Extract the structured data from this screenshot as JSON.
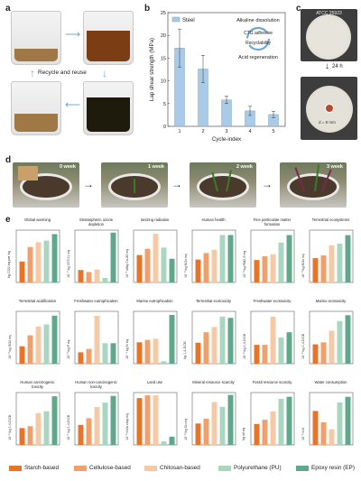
{
  "figure": {
    "panels": {
      "a": "a",
      "b": "b",
      "c": "c",
      "d": "d",
      "e": "e"
    },
    "panel_a": {
      "recycle_label": "Recycle and reuse"
    },
    "panel_c": {
      "top_label": "ATCC 25923",
      "time_label": "24 h",
      "diameter_label": "d = 8 mm"
    },
    "panel_d": {
      "weeks": [
        "0 week",
        "1 week",
        "2 week",
        "3 week"
      ]
    },
    "colors": {
      "starch": "#e8742a",
      "cellulose": "#f0a06a",
      "chitosan": "#f6c9a6",
      "pu": "#a8d6c0",
      "ep": "#5fa88c",
      "steel_bar": "#a9cbe8",
      "arrow_blue": "#6fa8d6"
    }
  },
  "chart_data": [
    {
      "type": "bar",
      "panel": "b",
      "legend": "Steel",
      "categories": [
        "1",
        "2",
        "3",
        "4",
        "5"
      ],
      "values": [
        17.2,
        12.6,
        5.8,
        3.4,
        2.6
      ],
      "errors": [
        4.2,
        3.0,
        0.8,
        1.0,
        0.7
      ],
      "xlabel": "Cycle-index",
      "ylabel": "Lap shear strength (MPa)",
      "ylim": [
        0,
        25
      ],
      "yticks": [
        0,
        5,
        10,
        15,
        20,
        25
      ],
      "annotations": [
        "Alkaline dissolution",
        "CTG adhesive",
        "Recyclability",
        "Acid regeneration"
      ]
    },
    {
      "type": "bar",
      "panel": "e",
      "legend": [
        "Starch-based",
        "Cellulose-based",
        "Chitosan-based",
        "Polyurethane (PU)",
        "Epoxy resin (EP)"
      ],
      "subplots": [
        {
          "title": "Global warming",
          "ylabel": "kg CO2 eq per kg",
          "values": [
            2.6,
            4.4,
            5.0,
            5.2,
            6.0
          ],
          "ymax": 6.5
        },
        {
          "title": "Stratospheric ozone depletion",
          "ylabel": "10⁻⁷ kg CFC11 eq",
          "values": [
            5.0,
            4.2,
            5.2,
            1.8,
            20.0
          ],
          "ymax": 21
        },
        {
          "title": "Ionizing radiation",
          "ylabel": "10⁻¹ kBq Co-60 eq",
          "values": [
            2.2,
            2.7,
            3.9,
            2.8,
            1.9
          ],
          "ymax": 4.2
        },
        {
          "title": "Human health",
          "ylabel": "10⁻³ kg NOx eq",
          "values": [
            7.0,
            9.0,
            10.0,
            14.5,
            14.5
          ],
          "ymax": 16
        },
        {
          "title": "Fine particulate matter formation",
          "ylabel": "10⁻³ kg PM2.5 eq",
          "values": [
            3.6,
            4.2,
            4.5,
            6.4,
            7.6
          ],
          "ymax": 8.4
        },
        {
          "title": "Terrestrial ecosystems",
          "ylabel": "10⁻³ kg NOx eq",
          "values": [
            7.2,
            8.0,
            11.0,
            11.5,
            14.0
          ],
          "ymax": 15.5
        },
        {
          "title": "Terrestrial acidification",
          "ylabel": "10⁻³ kg SO2 eq",
          "values": [
            8.0,
            13.0,
            17.0,
            18.0,
            22.0
          ],
          "ymax": 24
        },
        {
          "title": "Freshwater eutrophication",
          "ylabel": "10⁻³ kg P eq",
          "values": [
            1.0,
            1.3,
            4.2,
            1.8,
            1.8
          ],
          "ymax": 4.6
        },
        {
          "title": "Marine eutrophication",
          "ylabel": "10⁻⁴ kg N eq",
          "values": [
            3.6,
            4.0,
            4.2,
            0.4,
            8.2
          ],
          "ymax": 8.8
        },
        {
          "title": "Terrestrial ecotoxicity",
          "ylabel": "kg 1,4-DCB",
          "values": [
            8.0,
            12.0,
            14.0,
            18.0,
            17.5
          ],
          "ymax": 20
        },
        {
          "title": "Freshwater ecotoxicity",
          "ylabel": "10⁻² kg 1,4-DCB",
          "values": [
            3.6,
            3.6,
            9.0,
            5.0,
            6.0
          ],
          "ymax": 10
        },
        {
          "title": "Marine ecotoxicity",
          "ylabel": "10⁻² kg 1,4-DCB",
          "values": [
            5.0,
            5.5,
            8.5,
            11.0,
            12.5
          ],
          "ymax": 13.5
        },
        {
          "title": "Human carcinogenic toxicity",
          "ylabel": "10⁻² kg 1,4-DCB",
          "values": [
            18.0,
            20.0,
            34.0,
            36.0,
            52.0
          ],
          "ymax": 56
        },
        {
          "title": "Human non-carcinogenic toxicity",
          "ylabel": "10⁻¹ kg 1,4-DCB",
          "values": [
            18.0,
            24.0,
            34.0,
            38.0,
            44.0
          ],
          "ymax": 47
        },
        {
          "title": "Land use",
          "ylabel": "10⁻² m2a crop eq",
          "values": [
            68.0,
            72.0,
            72.0,
            5.0,
            12.0
          ],
          "ymax": 76
        },
        {
          "title": "Mineral resource scarcity",
          "ylabel": "10⁻³ kg Cu eq",
          "values": [
            9.0,
            11.0,
            18.0,
            16.0,
            21.0
          ],
          "ymax": 22
        },
        {
          "title": "Fossil resource scarcity",
          "ylabel": "kg oil eq",
          "values": [
            1.0,
            1.2,
            1.6,
            2.2,
            2.3
          ],
          "ymax": 2.5
        },
        {
          "title": "Water consumption",
          "ylabel": "10⁻² m3",
          "values": [
            2.4,
            1.6,
            1.1,
            3.0,
            3.4
          ],
          "ymax": 3.7
        }
      ]
    }
  ]
}
